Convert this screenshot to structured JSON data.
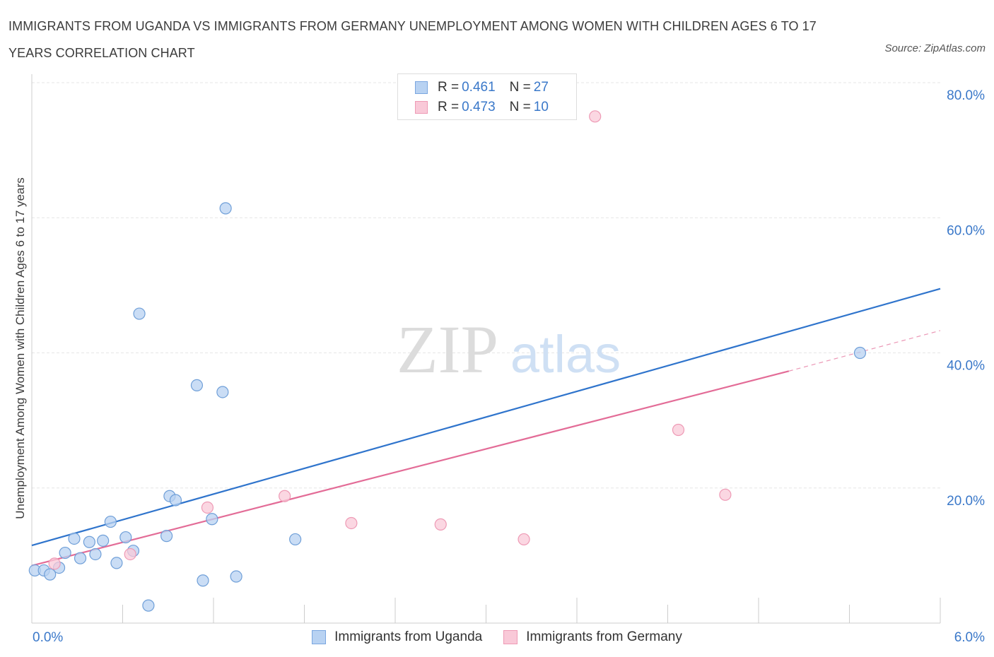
{
  "title": "IMMIGRANTS FROM UGANDA VS IMMIGRANTS FROM GERMANY UNEMPLOYMENT AMONG WOMEN WITH CHILDREN AGES 6 TO 17 YEARS CORRELATION CHART",
  "source": "Source: ZipAtlas.com",
  "watermark": {
    "zip": "ZIP",
    "atlas": "atlas"
  },
  "legend": {
    "rows": [
      {
        "r_label": "R =",
        "r_value": "0.461",
        "n_label": "N =",
        "n_value": "27",
        "color": "#b8d2f2",
        "border": "#7aa6e0"
      },
      {
        "r_label": "R =",
        "r_value": "0.473",
        "n_label": "N =",
        "n_value": "10",
        "color": "#f9c9d8",
        "border": "#ee9ab5"
      }
    ]
  },
  "bottom_legend": [
    "Immigrants from Uganda",
    "Immigrants from Germany"
  ],
  "chart_data": {
    "type": "scatter",
    "xlabel": "",
    "ylabel": "Unemployment Among Women with Children Ages 6 to 17 years",
    "xlim": [
      0,
      6
    ],
    "ylim": [
      0,
      80
    ],
    "x_tick_labels": [
      "0.0%",
      "6.0%"
    ],
    "y_tick_labels": [
      "20.0%",
      "40.0%",
      "60.0%",
      "80.0%"
    ],
    "y_ticks": [
      20,
      40,
      60,
      80
    ],
    "grid": true,
    "legend_position": "top-center",
    "series": [
      {
        "name": "Immigrants from Uganda",
        "color": "#b8d2f2",
        "stroke": "#6f9fd8",
        "line_color": "#2f74cc",
        "trend": {
          "x": [
            0,
            6
          ],
          "y": [
            11.5,
            49.5
          ]
        },
        "points": [
          [
            0.02,
            7.8
          ],
          [
            0.08,
            7.8
          ],
          [
            0.12,
            7.2
          ],
          [
            0.18,
            8.2
          ],
          [
            0.22,
            10.4
          ],
          [
            0.28,
            12.5
          ],
          [
            0.32,
            9.6
          ],
          [
            0.38,
            12.0
          ],
          [
            0.42,
            10.2
          ],
          [
            0.47,
            12.2
          ],
          [
            0.52,
            15.0
          ],
          [
            0.56,
            8.9
          ],
          [
            0.62,
            12.7
          ],
          [
            0.67,
            10.7
          ],
          [
            0.71,
            45.8
          ],
          [
            0.77,
            2.6
          ],
          [
            0.89,
            12.9
          ],
          [
            0.91,
            18.8
          ],
          [
            0.95,
            18.2
          ],
          [
            1.09,
            35.2
          ],
          [
            1.13,
            6.3
          ],
          [
            1.19,
            15.4
          ],
          [
            1.26,
            34.2
          ],
          [
            1.28,
            61.4
          ],
          [
            1.35,
            6.9
          ],
          [
            1.74,
            12.4
          ],
          [
            5.47,
            40.0
          ]
        ]
      },
      {
        "name": "Immigrants from Germany",
        "color": "#f9c9d8",
        "stroke": "#ee9ab5",
        "line_color": "#e36c97",
        "trend": {
          "x": [
            0,
            5
          ],
          "y": [
            8.5,
            37.3
          ]
        },
        "trend_dashed": {
          "x": [
            5,
            6
          ],
          "y": [
            37.3,
            43.3
          ]
        },
        "points": [
          [
            0.15,
            8.8
          ],
          [
            0.65,
            10.2
          ],
          [
            1.16,
            17.1
          ],
          [
            1.67,
            18.8
          ],
          [
            2.11,
            14.8
          ],
          [
            2.7,
            14.6
          ],
          [
            3.25,
            12.4
          ],
          [
            3.72,
            75.0
          ],
          [
            4.27,
            28.6
          ],
          [
            4.58,
            19.0
          ]
        ]
      }
    ]
  }
}
